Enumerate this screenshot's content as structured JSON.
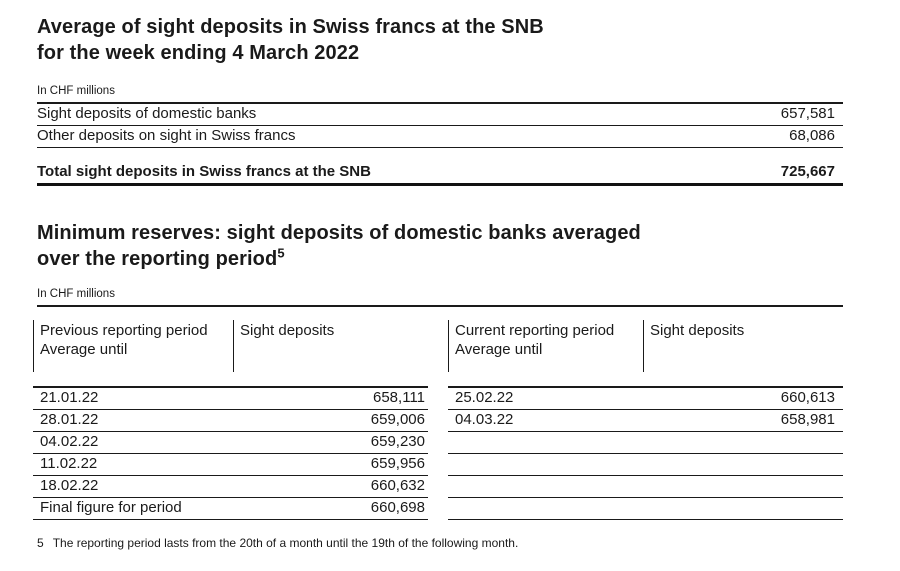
{
  "page": {
    "background": "#ffffff",
    "text_color": "#1a1a1a",
    "rule_color": "#1a1a1a"
  },
  "section1": {
    "title_line1": "Average of sight deposits in Swiss francs at the SNB",
    "title_line2": "for the week ending 4 March 2022",
    "unit_label": "In CHF millions",
    "rows": [
      {
        "label": "Sight deposits of domestic banks",
        "value": "657,581"
      },
      {
        "label": "Other deposits on sight in Swiss francs",
        "value": "68,086"
      }
    ],
    "total_row": {
      "label": "Total sight deposits in Swiss francs at the SNB",
      "value": "725,667"
    }
  },
  "section2": {
    "title_line1": "Minimum reserves: sight deposits of domestic banks averaged",
    "title_line2": "over the reporting period",
    "title_footnote_marker": "5",
    "unit_label": "In CHF millions",
    "header": {
      "col1_line1": "Previous reporting period",
      "col1_line2": "Average until",
      "col2": "Sight deposits",
      "col3_line1": "Current reporting period",
      "col3_line2": "Average until",
      "col4": "Sight deposits"
    },
    "previous_period_rows": [
      {
        "label": "21.01.22",
        "value": "658,111"
      },
      {
        "label": "28.01.22",
        "value": "659,006"
      },
      {
        "label": "04.02.22",
        "value": "659,230"
      },
      {
        "label": "11.02.22",
        "value": "659,956"
      },
      {
        "label": "18.02.22",
        "value": "660,632"
      },
      {
        "label": "Final figure for period",
        "value": "660,698"
      }
    ],
    "current_period_rows": [
      {
        "label": "25.02.22",
        "value": "660,613"
      },
      {
        "label": "04.03.22",
        "value": "658,981"
      },
      {
        "label": "",
        "value": ""
      },
      {
        "label": "",
        "value": ""
      },
      {
        "label": "",
        "value": ""
      },
      {
        "label": "",
        "value": ""
      }
    ]
  },
  "footnote": {
    "marker": "5",
    "text": "The reporting period lasts from the 20th of a month until the 19th of the following month."
  }
}
